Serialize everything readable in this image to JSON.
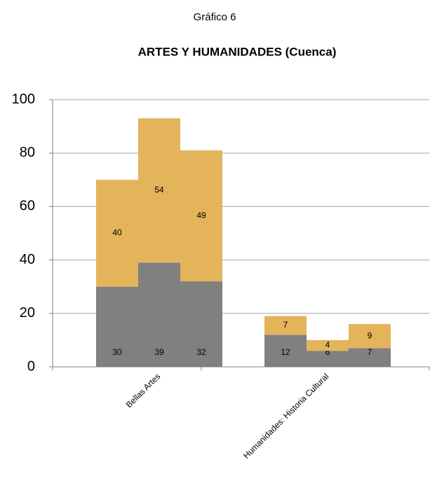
{
  "chart_data": {
    "type": "stacked_bar",
    "heading": "Gráfico 6",
    "title": "ARTES Y HUMANIDADES (Cuenca)",
    "categories": [
      null,
      "Bellas Artes",
      null,
      null,
      "Humanidades: Historia Cultural",
      null
    ],
    "series": [
      {
        "color": "#808080",
        "values": [
          30,
          39,
          32,
          12,
          6,
          7
        ]
      },
      {
        "color": "#e3b45a",
        "values": [
          40,
          54,
          49,
          7,
          4,
          9
        ]
      }
    ],
    "ylim": [
      0,
      100
    ],
    "yticks": [
      0,
      20,
      40,
      60,
      80,
      100
    ],
    "grid": true
  }
}
